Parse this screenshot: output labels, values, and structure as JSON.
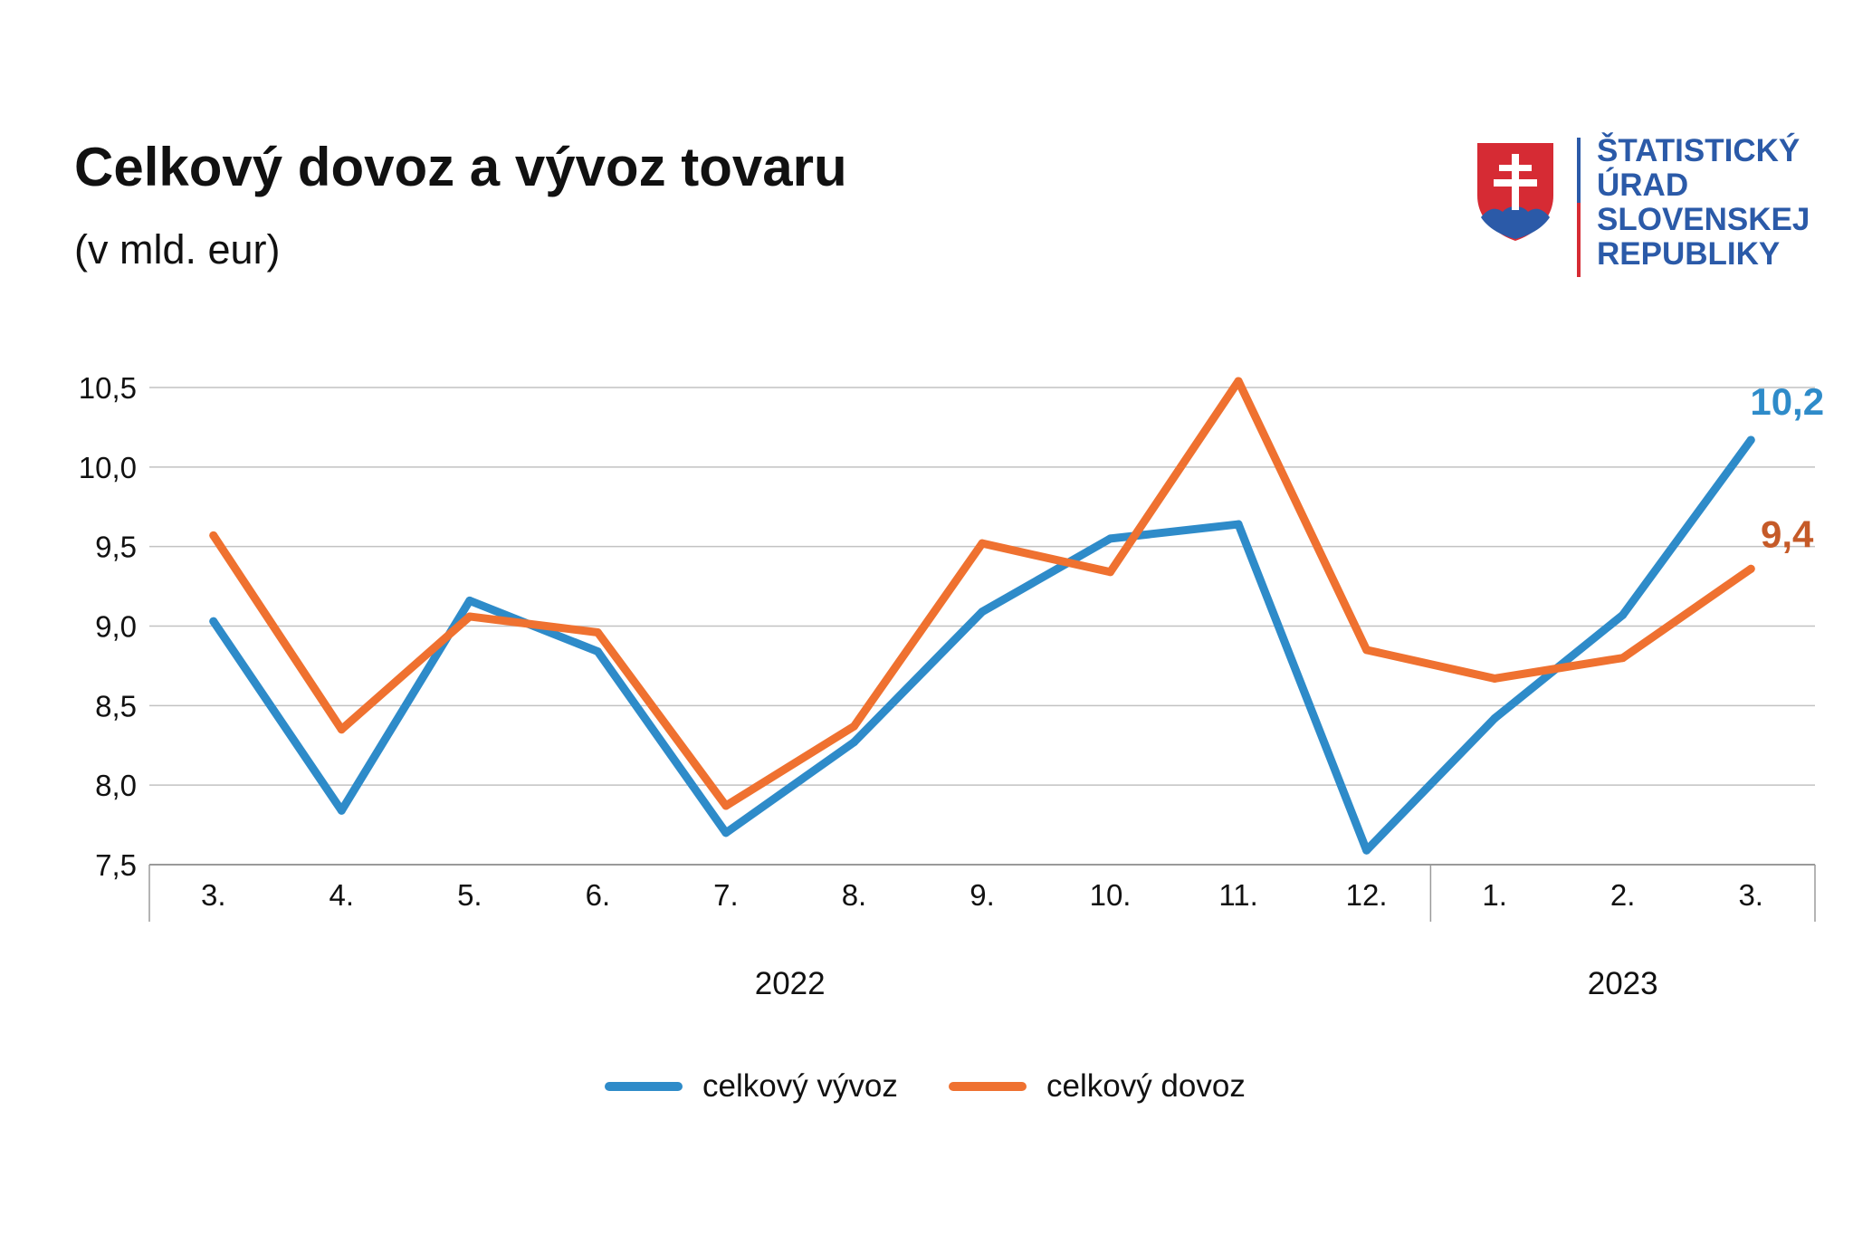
{
  "title": "Celkový dovoz a vývoz tovaru",
  "subtitle": "(v mld. eur)",
  "logo": {
    "lines": [
      "ŠTATISTICKÝ",
      "ÚRAD",
      "SLOVENSKEJ",
      "REPUBLIKY"
    ],
    "icon": "slovak-coat-of-arms-icon",
    "colors": {
      "text": "#2b5aa8",
      "shield_red": "#d62b34",
      "shield_blue": "#2b5aa8"
    }
  },
  "chart_data": {
    "type": "line",
    "categories": [
      "3.",
      "4.",
      "5.",
      "6.",
      "7.",
      "8.",
      "9.",
      "10.",
      "11.",
      "12.",
      "1.",
      "2.",
      "3."
    ],
    "year_groups": [
      {
        "label": "2022",
        "from": 0,
        "to": 9
      },
      {
        "label": "2023",
        "from": 10,
        "to": 12
      }
    ],
    "series": [
      {
        "name": "celkový vývoz",
        "color": "#2e8bc9",
        "values": [
          9.03,
          7.84,
          9.16,
          8.84,
          7.7,
          8.27,
          9.09,
          9.55,
          9.64,
          7.59,
          8.42,
          9.07,
          10.17
        ],
        "end_label": "10,2"
      },
      {
        "name": "celkový dovoz",
        "color": "#ef7130",
        "values": [
          9.57,
          8.35,
          9.06,
          8.96,
          7.87,
          8.37,
          9.52,
          9.34,
          10.54,
          8.85,
          8.67,
          8.8,
          9.36
        ],
        "end_label": "9,4",
        "end_label_color": "#c55a28"
      }
    ],
    "y_ticks": [
      "7,5",
      "8,0",
      "8,5",
      "9,0",
      "9,5",
      "10,0",
      "10,5"
    ],
    "ylim": [
      7.5,
      10.5
    ],
    "grid": true,
    "legend_position": "bottom"
  }
}
